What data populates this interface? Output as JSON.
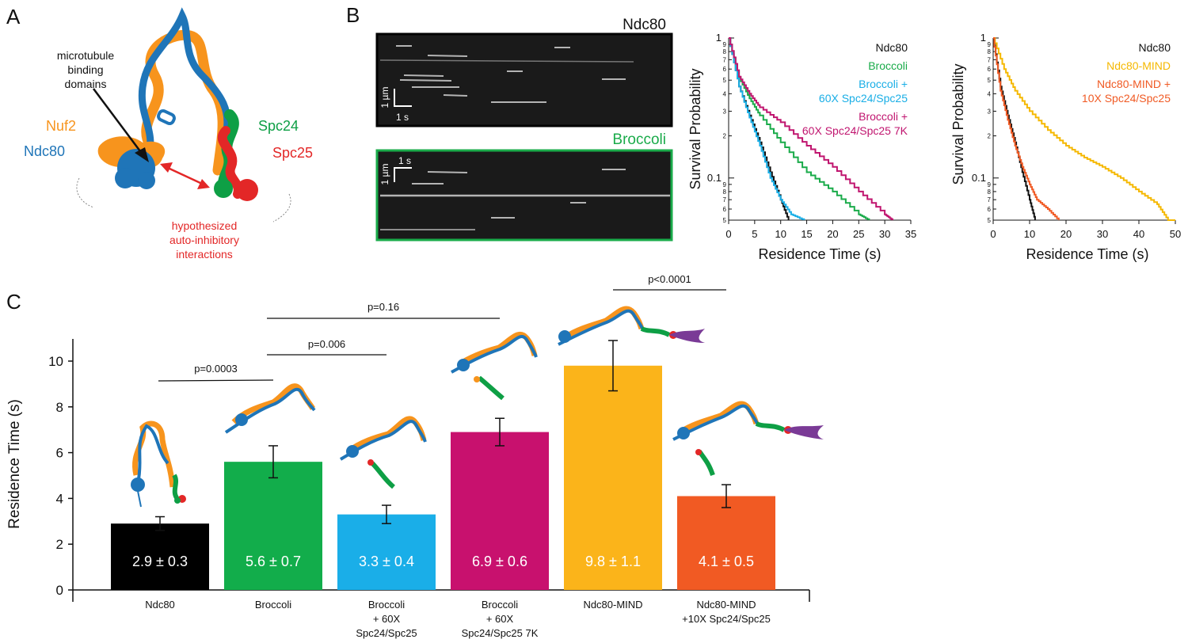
{
  "panels": {
    "A": "A",
    "B": "B",
    "C": "C"
  },
  "panelA": {
    "mt_label": [
      "microtubule",
      "binding",
      "domains"
    ],
    "nuf2": "Nuf2",
    "ndc80": "Ndc80",
    "spc24": "Spc24",
    "spc25": "Spc25",
    "auto_label": [
      "hypothesized",
      "auto-inhibitory",
      "interactions"
    ]
  },
  "panelB": {
    "kymo1_title": "Ndc80",
    "kymo2_title": "Broccoli",
    "scale_um": "1 µm",
    "scale_s": "1 s",
    "plot1": {
      "ylabel": "Survival Probability",
      "xlabel": "Residence Time (s)",
      "xticks": [
        "0",
        "5",
        "10",
        "15",
        "20",
        "25",
        "30",
        "35"
      ],
      "xmax": 35,
      "legend": [
        {
          "text": "Ndc80",
          "color": "#111111"
        },
        {
          "text": "Broccoli",
          "color": "#1aab4a"
        },
        {
          "text": "Broccoli +",
          "color": "#19aee6"
        },
        {
          "text": "60X Spc24/Spc25",
          "color": "#19aee6"
        },
        {
          "text": "Broccoli +",
          "color": "#c0156f"
        },
        {
          "text": "60X Spc24/Spc25 7K",
          "color": "#c0156f"
        }
      ],
      "curves": [
        {
          "name": "Ndc80",
          "color": "#111111",
          "t": [
            0,
            2,
            4,
            6,
            8,
            10,
            11.5
          ],
          "p": [
            1.0,
            0.45,
            0.28,
            0.18,
            0.11,
            0.07,
            0.05
          ]
        },
        {
          "name": "Broccoli",
          "color": "#1aab4a",
          "t": [
            0,
            2,
            4,
            6,
            10,
            15,
            20,
            25,
            27
          ],
          "p": [
            1.0,
            0.52,
            0.37,
            0.28,
            0.18,
            0.11,
            0.08,
            0.055,
            0.05
          ]
        },
        {
          "name": "Broccoli + 60X Spc24/Spc25",
          "color": "#19aee6",
          "t": [
            0,
            2,
            4,
            6,
            8,
            10,
            12,
            14.5
          ],
          "p": [
            1.0,
            0.45,
            0.27,
            0.17,
            0.1,
            0.07,
            0.055,
            0.05
          ]
        },
        {
          "name": "Broccoli + 60X Spc24/Spc25 7K",
          "color": "#c0156f",
          "t": [
            0,
            2,
            4,
            6,
            10,
            15,
            20,
            25,
            30,
            31.5
          ],
          "p": [
            1.0,
            0.53,
            0.4,
            0.32,
            0.25,
            0.17,
            0.12,
            0.08,
            0.055,
            0.05
          ]
        }
      ]
    },
    "plot2": {
      "ylabel": "Survival Probability",
      "xlabel": "Residence Time (s)",
      "xticks": [
        "0",
        "10",
        "20",
        "30",
        "40",
        "50"
      ],
      "xmax": 50,
      "legend": [
        {
          "text": "Ndc80",
          "color": "#111111"
        },
        {
          "text": "Ndc80-MIND",
          "color": "#f5b800"
        },
        {
          "text": "Ndc80-MIND +",
          "color": "#f05a24"
        },
        {
          "text": "10X Spc24/Spc25",
          "color": "#f05a24"
        }
      ],
      "curves": [
        {
          "name": "Ndc80",
          "color": "#111111",
          "t": [
            0,
            2,
            4,
            6,
            8,
            10,
            11.5
          ],
          "p": [
            1.0,
            0.45,
            0.28,
            0.18,
            0.11,
            0.07,
            0.05
          ]
        },
        {
          "name": "Ndc80-MIND",
          "color": "#f5b800",
          "t": [
            0,
            3,
            6,
            10,
            15,
            20,
            25,
            30,
            35,
            40,
            45,
            48,
            50
          ],
          "p": [
            1.0,
            0.6,
            0.42,
            0.3,
            0.22,
            0.17,
            0.14,
            0.12,
            0.1,
            0.08,
            0.065,
            0.05,
            0.05
          ]
        },
        {
          "name": "Ndc80-MIND + 10X Spc24/Spc25",
          "color": "#f05a24",
          "t": [
            0,
            2,
            4,
            6,
            8,
            10,
            12,
            15,
            18
          ],
          "p": [
            1.0,
            0.42,
            0.26,
            0.17,
            0.12,
            0.09,
            0.07,
            0.06,
            0.05
          ]
        }
      ]
    }
  },
  "chart_data": {
    "type": "bar",
    "ylabel": "Residence Time (s)",
    "ylim": [
      0,
      11
    ],
    "yticks": [
      "0",
      "2",
      "4",
      "6",
      "8",
      "10"
    ],
    "categories": [
      [
        "Ndc80"
      ],
      [
        "Broccoli"
      ],
      [
        "Broccoli",
        "+ 60X",
        "Spc24/Spc25"
      ],
      [
        "Broccoli",
        "+ 60X",
        "Spc24/Spc25 7K"
      ],
      [
        "Ndc80-MIND"
      ],
      [
        "Ndc80-MIND",
        "+10X Spc24/Spc25"
      ]
    ],
    "values": [
      2.9,
      5.6,
      3.3,
      6.9,
      9.8,
      4.1
    ],
    "errors": [
      0.3,
      0.7,
      0.4,
      0.6,
      1.1,
      0.5
    ],
    "value_labels": [
      "2.9 ± 0.3",
      "5.6 ± 0.7",
      "3.3 ± 0.4",
      "6.9 ± 0.6",
      "9.8 ± 1.1",
      "4.1 ± 0.5"
    ],
    "colors": [
      "#000000",
      "#12ad4b",
      "#1aaee8",
      "#c8116e",
      "#fbb41a",
      "#f15a23"
    ],
    "comparisons": [
      {
        "from": 0,
        "to": 1,
        "label": "p=0.0003"
      },
      {
        "from": 1,
        "to": 2,
        "label": "p=0.006"
      },
      {
        "from": 1,
        "to": 3,
        "label": "p=0.16"
      },
      {
        "from": 4,
        "to": 5,
        "label": "p<0.0001"
      }
    ]
  }
}
